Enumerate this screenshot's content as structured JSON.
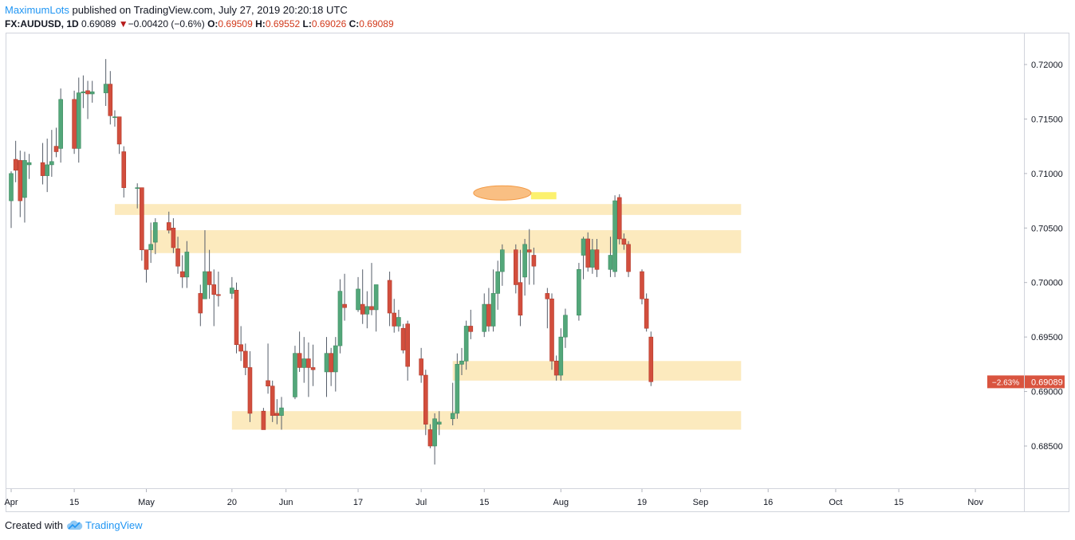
{
  "header": {
    "author": "MaximumLots",
    "published_text": " published on TradingView.com, July 27, 2019 20:20:18 UTC",
    "symbol": "FX:AUDUSD, 1D",
    "last": "0.69089",
    "change": "−0.00420 (−0.6%)",
    "o_label": "O:",
    "o": "0.69509",
    "h_label": "H:",
    "h": "0.69552",
    "l_label": "L:",
    "l": "0.69026",
    "c_label": "C:",
    "c": "0.69089"
  },
  "footer": {
    "created_with": "Created with",
    "brand": "TradingView",
    "logo_icon": "tradingview-cloud-icon"
  },
  "colors": {
    "up": "#53a77a",
    "down": "#d24e3d",
    "zone": "#fbe3a8",
    "price_tag": "#d9543f",
    "marker_ellipse": "#f7a95a",
    "marker_bar": "#fbee55"
  },
  "chart_data": {
    "type": "candlestick",
    "y_ticks": [
      "0.72000",
      "0.71500",
      "0.71000",
      "0.70500",
      "0.70000",
      "0.69500",
      "0.69000",
      "0.68500"
    ],
    "x_ticks": [
      "Apr",
      "15",
      "May",
      "20",
      "Jun",
      "17",
      "Jul",
      "15",
      "Aug",
      "19",
      "Sep",
      "16",
      "Oct",
      "15",
      "Nov"
    ],
    "ylim": [
      0.6823,
      0.724
    ],
    "price_label": "0.69089",
    "price_change_label": "−2.63%",
    "zones": [
      {
        "start": "2019-04-24",
        "end": "2019-09-10",
        "low": 0.7062,
        "high": 0.7072
      },
      {
        "start": "2019-05-02",
        "end": "2019-09-10",
        "low": 0.7027,
        "high": 0.7048
      },
      {
        "start": "2019-07-08",
        "end": "2019-09-10",
        "low": 0.691,
        "high": 0.6928
      },
      {
        "start": "2019-05-20",
        "end": "2019-09-10",
        "low": 0.6865,
        "high": 0.6882
      }
    ],
    "marker": {
      "center": "2019-07-19",
      "price": 0.708,
      "bar_end": "2019-07-31"
    },
    "candles": [
      {
        "d": "2019-04-01",
        "o": 0.7075,
        "h": 0.7102,
        "l": 0.705,
        "c": 0.71
      },
      {
        "d": "2019-04-02",
        "o": 0.7113,
        "h": 0.713,
        "l": 0.7092,
        "c": 0.7103
      },
      {
        "d": "2019-04-03",
        "o": 0.7112,
        "h": 0.7121,
        "l": 0.706,
        "c": 0.7075
      },
      {
        "d": "2019-04-04",
        "o": 0.7078,
        "h": 0.712,
        "l": 0.7055,
        "c": 0.7112
      },
      {
        "d": "2019-04-05",
        "o": 0.7108,
        "h": 0.7118,
        "l": 0.7095,
        "c": 0.711
      },
      {
        "d": "2019-04-08",
        "o": 0.711,
        "h": 0.7128,
        "l": 0.709,
        "c": 0.7098
      },
      {
        "d": "2019-04-09",
        "o": 0.7098,
        "h": 0.7132,
        "l": 0.7083,
        "c": 0.7108
      },
      {
        "d": "2019-04-10",
        "o": 0.7108,
        "h": 0.714,
        "l": 0.7097,
        "c": 0.7111
      },
      {
        "d": "2019-04-11",
        "o": 0.7125,
        "h": 0.7142,
        "l": 0.7115,
        "c": 0.712
      },
      {
        "d": "2019-04-12",
        "o": 0.7123,
        "h": 0.7178,
        "l": 0.711,
        "c": 0.7168
      },
      {
        "d": "2019-04-15",
        "o": 0.7168,
        "h": 0.7176,
        "l": 0.7118,
        "c": 0.7123
      },
      {
        "d": "2019-04-16",
        "o": 0.7123,
        "h": 0.7188,
        "l": 0.711,
        "c": 0.7174
      },
      {
        "d": "2019-04-17",
        "o": 0.7174,
        "h": 0.719,
        "l": 0.716,
        "c": 0.7175
      },
      {
        "d": "2019-04-18",
        "o": 0.7176,
        "h": 0.7185,
        "l": 0.715,
        "c": 0.7173
      },
      {
        "d": "2019-04-19",
        "o": 0.7173,
        "h": 0.7185,
        "l": 0.7165,
        "c": 0.7175
      },
      {
        "d": "2019-04-22",
        "o": 0.7174,
        "h": 0.7205,
        "l": 0.7162,
        "c": 0.7182
      },
      {
        "d": "2019-04-23",
        "o": 0.7182,
        "h": 0.7194,
        "l": 0.7145,
        "c": 0.7153
      },
      {
        "d": "2019-04-24",
        "o": 0.7152,
        "h": 0.7158,
        "l": 0.7143,
        "c": 0.7152
      },
      {
        "d": "2019-04-25",
        "o": 0.7152,
        "h": 0.7152,
        "l": 0.7118,
        "c": 0.7127
      },
      {
        "d": "2019-04-26",
        "o": 0.712,
        "h": 0.7125,
        "l": 0.7078,
        "c": 0.7087
      },
      {
        "d": "2019-04-29",
        "o": 0.7087,
        "h": 0.7091,
        "l": 0.7068,
        "c": 0.7087
      },
      {
        "d": "2019-04-30",
        "o": 0.7087,
        "h": 0.7085,
        "l": 0.702,
        "c": 0.703
      },
      {
        "d": "2019-05-01",
        "o": 0.703,
        "h": 0.703,
        "l": 0.7,
        "c": 0.7012
      },
      {
        "d": "2019-05-02",
        "o": 0.703,
        "h": 0.7055,
        "l": 0.7018,
        "c": 0.7035
      },
      {
        "d": "2019-05-03",
        "o": 0.7037,
        "h": 0.7059,
        "l": 0.7026,
        "c": 0.7055
      },
      {
        "d": "2019-05-06",
        "o": 0.7055,
        "h": 0.7065,
        "l": 0.7045,
        "c": 0.7048
      },
      {
        "d": "2019-05-07",
        "o": 0.705,
        "h": 0.7059,
        "l": 0.7027,
        "c": 0.7032
      },
      {
        "d": "2019-05-08",
        "o": 0.7031,
        "h": 0.7042,
        "l": 0.7008,
        "c": 0.7015
      },
      {
        "d": "2019-05-09",
        "o": 0.701,
        "h": 0.7025,
        "l": 0.6995,
        "c": 0.7005
      },
      {
        "d": "2019-05-10",
        "o": 0.7005,
        "h": 0.7038,
        "l": 0.6995,
        "c": 0.7028
      },
      {
        "d": "2019-05-13",
        "o": 0.699,
        "h": 0.6998,
        "l": 0.696,
        "c": 0.6972
      },
      {
        "d": "2019-05-14",
        "o": 0.6985,
        "h": 0.7048,
        "l": 0.6988,
        "c": 0.701
      },
      {
        "d": "2019-05-15",
        "o": 0.701,
        "h": 0.703,
        "l": 0.6985,
        "c": 0.6998
      },
      {
        "d": "2019-05-16",
        "o": 0.6998,
        "h": 0.7012,
        "l": 0.696,
        "c": 0.6989
      },
      {
        "d": "2019-05-17",
        "o": 0.6989,
        "h": 0.701,
        "l": 0.6978,
        "c": 0.6988
      },
      {
        "d": "2019-05-20",
        "o": 0.699,
        "h": 0.7005,
        "l": 0.6985,
        "c": 0.6995
      },
      {
        "d": "2019-05-21",
        "o": 0.6993,
        "h": 0.7,
        "l": 0.6935,
        "c": 0.6943
      },
      {
        "d": "2019-05-22",
        "o": 0.6943,
        "h": 0.696,
        "l": 0.6928,
        "c": 0.6937
      },
      {
        "d": "2019-05-23",
        "o": 0.6937,
        "h": 0.6944,
        "l": 0.6915,
        "c": 0.6922
      },
      {
        "d": "2019-05-24",
        "o": 0.6922,
        "h": 0.6937,
        "l": 0.6872,
        "c": 0.688
      },
      {
        "d": "2019-05-27",
        "o": 0.6882,
        "h": 0.6885,
        "l": 0.6865,
        "c": 0.6865
      },
      {
        "d": "2019-05-28",
        "o": 0.691,
        "h": 0.6944,
        "l": 0.6898,
        "c": 0.6905
      },
      {
        "d": "2019-05-29",
        "o": 0.6905,
        "h": 0.691,
        "l": 0.6872,
        "c": 0.6878
      },
      {
        "d": "2019-05-30",
        "o": 0.688,
        "h": 0.6893,
        "l": 0.687,
        "c": 0.6878
      },
      {
        "d": "2019-05-31",
        "o": 0.6878,
        "h": 0.6895,
        "l": 0.6865,
        "c": 0.6885
      },
      {
        "d": "2019-06-03",
        "o": 0.6895,
        "h": 0.6942,
        "l": 0.6893,
        "c": 0.6935
      },
      {
        "d": "2019-06-04",
        "o": 0.6935,
        "h": 0.6955,
        "l": 0.6918,
        "c": 0.6922
      },
      {
        "d": "2019-06-05",
        "o": 0.6922,
        "h": 0.695,
        "l": 0.6908,
        "c": 0.693
      },
      {
        "d": "2019-06-06",
        "o": 0.693,
        "h": 0.6945,
        "l": 0.6895,
        "c": 0.6922
      },
      {
        "d": "2019-06-07",
        "o": 0.6922,
        "h": 0.6943,
        "l": 0.6905,
        "c": 0.692
      },
      {
        "d": "2019-06-10",
        "o": 0.6918,
        "h": 0.695,
        "l": 0.6895,
        "c": 0.6935
      },
      {
        "d": "2019-06-11",
        "o": 0.6935,
        "h": 0.694,
        "l": 0.6905,
        "c": 0.6918
      },
      {
        "d": "2019-06-12",
        "o": 0.6918,
        "h": 0.695,
        "l": 0.69,
        "c": 0.6942
      },
      {
        "d": "2019-06-13",
        "o": 0.6942,
        "h": 0.7003,
        "l": 0.6935,
        "c": 0.6992
      },
      {
        "d": "2019-06-14",
        "o": 0.698,
        "h": 0.7008,
        "l": 0.6965,
        "c": 0.6977
      },
      {
        "d": "2019-06-17",
        "o": 0.6975,
        "h": 0.7005,
        "l": 0.6973,
        "c": 0.6994
      },
      {
        "d": "2019-06-18",
        "o": 0.698,
        "h": 0.7012,
        "l": 0.6962,
        "c": 0.6971
      },
      {
        "d": "2019-06-19",
        "o": 0.6971,
        "h": 0.6992,
        "l": 0.6958,
        "c": 0.6978
      },
      {
        "d": "2019-06-20",
        "o": 0.6978,
        "h": 0.7018,
        "l": 0.697,
        "c": 0.6975
      },
      {
        "d": "2019-06-21",
        "o": 0.6975,
        "h": 0.6995,
        "l": 0.6955,
        "c": 0.6998
      },
      {
        "d": "2019-06-24",
        "o": 0.7002,
        "h": 0.701,
        "l": 0.696,
        "c": 0.6972
      },
      {
        "d": "2019-06-25",
        "o": 0.6972,
        "h": 0.6985,
        "l": 0.6954,
        "c": 0.696
      },
      {
        "d": "2019-06-26",
        "o": 0.696,
        "h": 0.6975,
        "l": 0.6955,
        "c": 0.6968
      },
      {
        "d": "2019-06-27",
        "o": 0.6958,
        "h": 0.6962,
        "l": 0.6935,
        "c": 0.6938
      },
      {
        "d": "2019-06-28",
        "o": 0.6962,
        "h": 0.6965,
        "l": 0.691,
        "c": 0.6923
      },
      {
        "d": "2019-07-01",
        "o": 0.693,
        "h": 0.694,
        "l": 0.6908,
        "c": 0.6915
      },
      {
        "d": "2019-07-02",
        "o": 0.6915,
        "h": 0.692,
        "l": 0.686,
        "c": 0.687
      },
      {
        "d": "2019-07-03",
        "o": 0.6865,
        "h": 0.687,
        "l": 0.6848,
        "c": 0.685
      },
      {
        "d": "2019-07-04",
        "o": 0.685,
        "h": 0.688,
        "l": 0.6833,
        "c": 0.6875
      },
      {
        "d": "2019-07-05",
        "o": 0.687,
        "h": 0.6882,
        "l": 0.686,
        "c": 0.6872
      },
      {
        "d": "2019-07-08",
        "o": 0.6875,
        "h": 0.6908,
        "l": 0.6869,
        "c": 0.688
      },
      {
        "d": "2019-07-09",
        "o": 0.688,
        "h": 0.6935,
        "l": 0.6875,
        "c": 0.6925
      },
      {
        "d": "2019-07-10",
        "o": 0.6925,
        "h": 0.694,
        "l": 0.6915,
        "c": 0.6928
      },
      {
        "d": "2019-07-11",
        "o": 0.6928,
        "h": 0.6965,
        "l": 0.692,
        "c": 0.696
      },
      {
        "d": "2019-07-12",
        "o": 0.696,
        "h": 0.6975,
        "l": 0.6948,
        "c": 0.6955
      },
      {
        "d": "2019-07-15",
        "o": 0.6955,
        "h": 0.699,
        "l": 0.695,
        "c": 0.698
      },
      {
        "d": "2019-07-16",
        "o": 0.698,
        "h": 0.6995,
        "l": 0.6955,
        "c": 0.696
      },
      {
        "d": "2019-07-17",
        "o": 0.696,
        "h": 0.7012,
        "l": 0.6955,
        "c": 0.699
      },
      {
        "d": "2019-07-18",
        "o": 0.699,
        "h": 0.702,
        "l": 0.6975,
        "c": 0.701
      },
      {
        "d": "2019-07-19",
        "o": 0.701,
        "h": 0.7035,
        "l": 0.6997,
        "c": 0.703
      },
      {
        "d": "2019-07-22",
        "o": 0.703,
        "h": 0.7035,
        "l": 0.699,
        "c": 0.6998
      },
      {
        "d": "2019-07-23",
        "o": 0.7,
        "h": 0.703,
        "l": 0.696,
        "c": 0.697
      },
      {
        "d": "2019-07-24",
        "o": 0.7005,
        "h": 0.704,
        "l": 0.6988,
        "c": 0.7035
      },
      {
        "d": "2019-07-25",
        "o": 0.703,
        "h": 0.7049,
        "l": 0.6998,
        "c": 0.7028
      },
      {
        "d": "2019-07-26",
        "o": 0.7025,
        "h": 0.7032,
        "l": 0.6998,
        "c": 0.7015
      },
      {
        "d": "2019-07-29",
        "o": 0.699,
        "h": 0.6995,
        "l": 0.6958,
        "c": 0.6985
      },
      {
        "d": "2019-07-30",
        "o": 0.6985,
        "h": 0.699,
        "l": 0.692,
        "c": 0.6928
      },
      {
        "d": "2019-07-31",
        "o": 0.6928,
        "h": 0.6933,
        "l": 0.691,
        "c": 0.6915
      },
      {
        "d": "2019-08-01",
        "o": 0.6915,
        "h": 0.6958,
        "l": 0.691,
        "c": 0.695
      },
      {
        "d": "2019-08-02",
        "o": 0.695,
        "h": 0.6976,
        "l": 0.694,
        "c": 0.697
      },
      {
        "d": "2019-08-05",
        "o": 0.697,
        "h": 0.7018,
        "l": 0.6965,
        "c": 0.7012
      },
      {
        "d": "2019-08-06",
        "o": 0.7025,
        "h": 0.7042,
        "l": 0.7003,
        "c": 0.704
      },
      {
        "d": "2019-08-07",
        "o": 0.704,
        "h": 0.7046,
        "l": 0.701,
        "c": 0.7014
      },
      {
        "d": "2019-08-08",
        "o": 0.7014,
        "h": 0.704,
        "l": 0.7008,
        "c": 0.703
      },
      {
        "d": "2019-08-09",
        "o": 0.703,
        "h": 0.704,
        "l": 0.7005,
        "c": 0.7012
      },
      {
        "d": "2019-08-12",
        "o": 0.7012,
        "h": 0.7042,
        "l": 0.7005,
        "c": 0.7025
      },
      {
        "d": "2019-08-13",
        "o": 0.701,
        "h": 0.708,
        "l": 0.7005,
        "c": 0.7075
      },
      {
        "d": "2019-08-14",
        "o": 0.7078,
        "h": 0.7081,
        "l": 0.7035,
        "c": 0.704
      },
      {
        "d": "2019-08-15",
        "o": 0.704,
        "h": 0.7045,
        "l": 0.703,
        "c": 0.7035
      },
      {
        "d": "2019-08-16",
        "o": 0.7035,
        "h": 0.7038,
        "l": 0.7005,
        "c": 0.701
      },
      {
        "d": "2019-08-19",
        "o": 0.701,
        "h": 0.7012,
        "l": 0.698,
        "c": 0.6985
      },
      {
        "d": "2019-08-20",
        "o": 0.6985,
        "h": 0.699,
        "l": 0.6955,
        "c": 0.6958
      },
      {
        "d": "2019-08-21",
        "o": 0.695,
        "h": 0.6955,
        "l": 0.6905,
        "c": 0.6909
      }
    ]
  }
}
